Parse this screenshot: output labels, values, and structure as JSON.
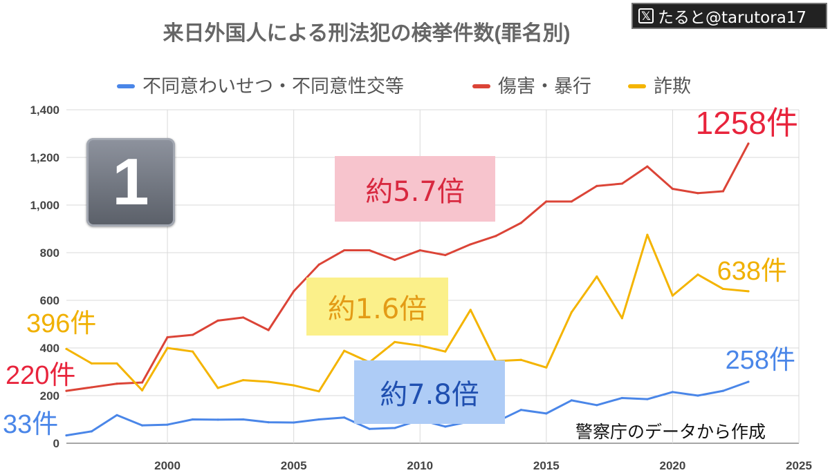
{
  "chart_data": {
    "type": "line",
    "title": "来日外国人による刑法犯の検挙件数(罪名別)",
    "xlabel": "",
    "ylabel": "",
    "xlim": [
      1996,
      2025
    ],
    "ylim": [
      0,
      1400
    ],
    "x_ticks": [
      2000,
      2005,
      2010,
      2015,
      2020,
      2025
    ],
    "y_ticks": [
      0,
      200,
      400,
      600,
      800,
      1000,
      1200,
      1400
    ],
    "y_tick_labels": [
      "0",
      "200",
      "400",
      "600",
      "800",
      "1,000",
      "1,200",
      "1,400"
    ],
    "grid": true,
    "legend_position": "top",
    "x": [
      1996,
      1997,
      1998,
      1999,
      2000,
      2001,
      2002,
      2003,
      2004,
      2005,
      2006,
      2007,
      2008,
      2009,
      2010,
      2011,
      2012,
      2013,
      2014,
      2015,
      2016,
      2017,
      2018,
      2019,
      2020,
      2021,
      2022,
      2023
    ],
    "series": [
      {
        "name": "不同意わいせつ・不同意性交等",
        "color": "#4a86e8",
        "values": [
          33,
          50,
          118,
          75,
          78,
          100,
          99,
          100,
          88,
          87,
          100,
          108,
          60,
          64,
          98,
          70,
          92,
          89,
          140,
          125,
          180,
          160,
          190,
          185,
          215,
          200,
          220,
          258
        ]
      },
      {
        "name": "傷害・暴行",
        "color": "#db4437",
        "values": [
          220,
          235,
          250,
          255,
          445,
          455,
          515,
          528,
          475,
          638,
          750,
          810,
          810,
          770,
          810,
          790,
          835,
          870,
          925,
          1015,
          1015,
          1080,
          1090,
          1162,
          1068,
          1050,
          1058,
          1258
        ]
      },
      {
        "name": "詐欺",
        "color": "#f4b400",
        "values": [
          396,
          335,
          335,
          222,
          400,
          385,
          232,
          265,
          258,
          243,
          218,
          388,
          340,
          425,
          410,
          385,
          560,
          345,
          350,
          318,
          550,
          700,
          525,
          875,
          620,
          708,
          648,
          638
        ]
      }
    ],
    "annotations": {
      "start_blue": "33件",
      "start_red": "220件",
      "start_yellow": "396件",
      "end_blue": "258件",
      "end_red": "1258件",
      "end_yellow": "638件",
      "ratio_red": "約5.7倍",
      "ratio_yellow": "約1.6倍",
      "ratio_blue": "約7.8倍"
    }
  },
  "overlay": {
    "credit": "たると@tarutora17",
    "credit_icon": "x-logo-icon",
    "badge_number": "1",
    "source_note": "警察庁のデータから作成"
  },
  "colors": {
    "grid": "#d9d9d9",
    "axis_text": "#444444",
    "title": "#666666",
    "annot_red": "#e8243c",
    "annot_blue": "#4a86e8",
    "annot_yellow": "#f0b000"
  }
}
